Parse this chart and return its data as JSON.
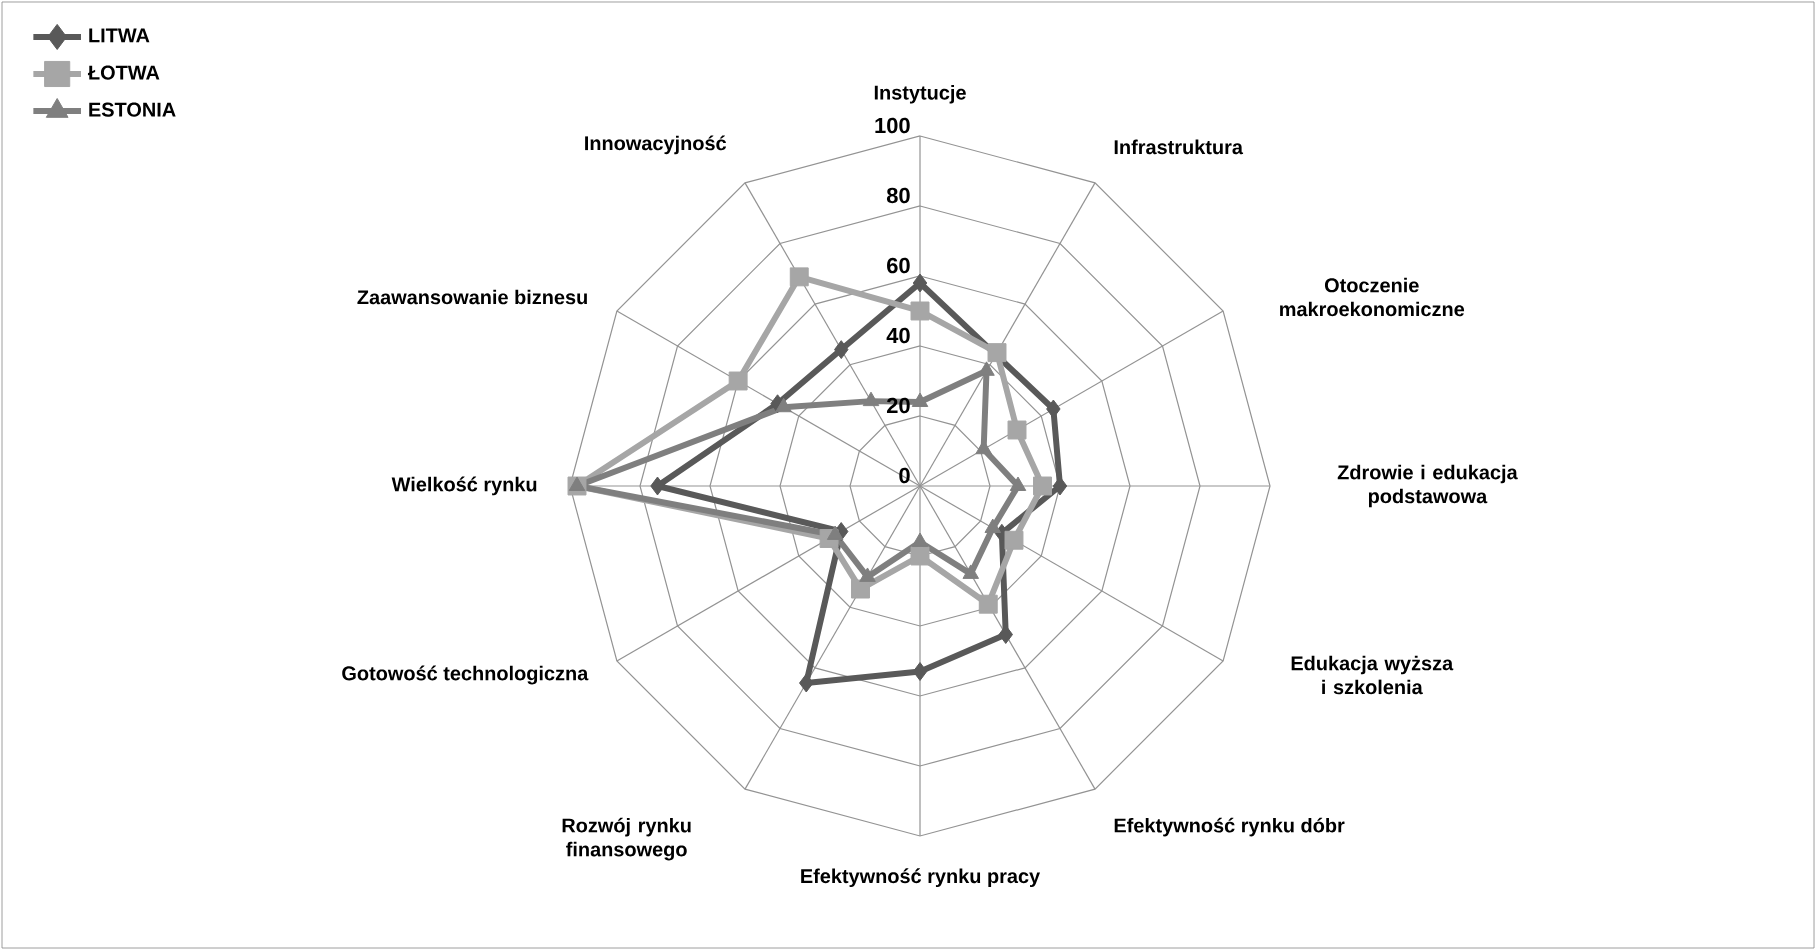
{
  "chart_data": {
    "type": "radar",
    "categories": [
      "Instytucje",
      "Infrastruktura",
      "Otoczenie makroekonomiczne",
      "Zdrowie i edukacja podstawowa",
      "Edukacja wyższa i szkolenia",
      "Efektywność rynku dóbr",
      "Efektywność rynku pracy",
      "Rozwój rynku finansowego",
      "Gotowość technologiczna",
      "Wielkość rynku",
      "Zaawansowanie biznesu",
      "Innowacyjność"
    ],
    "series": [
      {
        "name": "LITWA",
        "color": "#595959",
        "marker": "diamond",
        "values": [
          58,
          null,
          44,
          40,
          27,
          49,
          53,
          65,
          26,
          75,
          47,
          45
        ]
      },
      {
        "name": "ŁOTWA",
        "color": "#a6a6a6",
        "marker": "square",
        "values": [
          50,
          44,
          32,
          35,
          31,
          39,
          20,
          34,
          30,
          98,
          60,
          69
        ]
      },
      {
        "name": "ESTONIA",
        "color": "#7f7f7f",
        "marker": "triangle",
        "values": [
          24,
          38,
          21,
          28,
          24,
          29,
          16,
          30,
          28,
          98,
          45,
          28
        ]
      }
    ],
    "ylim": [
      0,
      100
    ],
    "yticks": [
      0,
      20,
      40,
      60,
      80,
      100
    ],
    "grid": true,
    "legend": "top left"
  }
}
